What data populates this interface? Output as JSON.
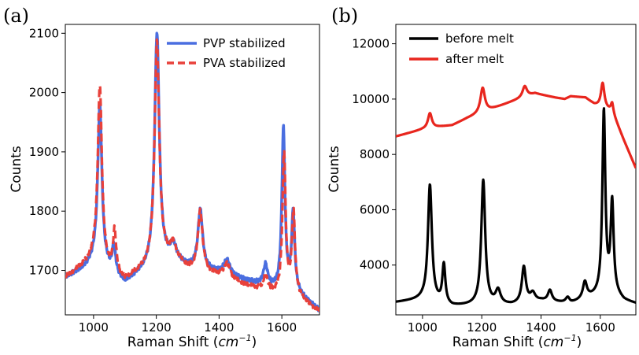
{
  "chart_data": [
    {
      "panel_label": "(a)",
      "type": "line",
      "xlabel": "Raman Shift (",
      "xlabel_unit": "cm",
      "xlabel_exp": "−1",
      "xlabel_close": ")",
      "ylabel": "Counts",
      "xlim": [
        910,
        1720
      ],
      "ylim": [
        1625,
        2115
      ],
      "xticks": [
        1000,
        1200,
        1400,
        1600
      ],
      "yticks": [
        1700,
        1800,
        1900,
        2000,
        2100
      ],
      "legend_position": "top-right",
      "series": [
        {
          "name": "PVP stabilized",
          "color": "#4a6ee0",
          "dash": "solid",
          "baseline": [
            [
              910,
              1688
            ],
            [
              960,
              1700
            ],
            [
              1000,
              1712
            ],
            [
              1060,
              1695
            ],
            [
              1100,
              1678
            ],
            [
              1150,
              1695
            ],
            [
              1250,
              1720
            ],
            [
              1300,
              1705
            ],
            [
              1400,
              1695
            ],
            [
              1500,
              1680
            ],
            [
              1580,
              1668
            ],
            [
              1650,
              1660
            ],
            [
              1720,
              1632
            ]
          ],
          "peaks": [
            [
              1020,
              272,
              8
            ],
            [
              1065,
              45,
              6
            ],
            [
              1202,
              392,
              9
            ],
            [
              1255,
              20,
              10
            ],
            [
              1340,
              100,
              9
            ],
            [
              1425,
              25,
              12
            ],
            [
              1548,
              35,
              8
            ],
            [
              1605,
              272,
              6
            ],
            [
              1636,
              132,
              6
            ]
          ]
        },
        {
          "name": "PVA stabilized",
          "color": "#e8413b",
          "dash": "dashed",
          "baseline": [
            [
              910,
              1688
            ],
            [
              960,
              1705
            ],
            [
              1000,
              1718
            ],
            [
              1060,
              1695
            ],
            [
              1100,
              1682
            ],
            [
              1150,
              1698
            ],
            [
              1250,
              1722
            ],
            [
              1300,
              1702
            ],
            [
              1400,
              1690
            ],
            [
              1500,
              1672
            ],
            [
              1580,
              1660
            ],
            [
              1650,
              1655
            ],
            [
              1720,
              1630
            ]
          ],
          "peaks": [
            [
              1020,
              302,
              8
            ],
            [
              1067,
              70,
              6
            ],
            [
              1202,
              375,
              9
            ],
            [
              1255,
              20,
              10
            ],
            [
              1340,
              102,
              9
            ],
            [
              1425,
              25,
              12
            ],
            [
              1548,
              25,
              8
            ],
            [
              1607,
              240,
              6
            ],
            [
              1637,
              140,
              6
            ]
          ]
        }
      ]
    },
    {
      "panel_label": "(b)",
      "type": "line",
      "xlabel": "Raman Shift (",
      "xlabel_unit": "cm",
      "xlabel_exp": "−1",
      "xlabel_close": ")",
      "ylabel": "Counts",
      "xlim": [
        910,
        1720
      ],
      "ylim": [
        2200,
        12700
      ],
      "xticks": [
        1000,
        1200,
        1400,
        1600
      ],
      "yticks": [
        4000,
        6000,
        8000,
        10000,
        12000
      ],
      "legend_position": "top-left",
      "series": [
        {
          "name": "before melt",
          "color": "#000000",
          "dash": "solid",
          "baseline": [
            [
              910,
              2650
            ],
            [
              1000,
              2750
            ],
            [
              1100,
              2500
            ],
            [
              1200,
              2550
            ],
            [
              1300,
              2550
            ],
            [
              1400,
              2700
            ],
            [
              1500,
              2600
            ],
            [
              1560,
              2800
            ],
            [
              1640,
              3000
            ],
            [
              1680,
              2700
            ],
            [
              1720,
              2600
            ]
          ],
          "peaks": [
            [
              1025,
              4200,
              8
            ],
            [
              1072,
              1400,
              6
            ],
            [
              1205,
              4500,
              8
            ],
            [
              1255,
              500,
              10
            ],
            [
              1342,
              1300,
              8
            ],
            [
              1372,
              300,
              10
            ],
            [
              1430,
              400,
              8
            ],
            [
              1490,
              200,
              8
            ],
            [
              1548,
              600,
              8
            ],
            [
              1612,
              6600,
              6
            ],
            [
              1640,
              3200,
              6
            ]
          ]
        },
        {
          "name": "after melt",
          "color": "#e8261e",
          "dash": "solid",
          "baseline": [
            [
              910,
              8650
            ],
            [
              1000,
              8900
            ],
            [
              1060,
              9000
            ],
            [
              1100,
              9050
            ],
            [
              1150,
              9300
            ],
            [
              1250,
              9700
            ],
            [
              1300,
              9900
            ],
            [
              1380,
              10200
            ],
            [
              1450,
              10050
            ],
            [
              1480,
              10000
            ],
            [
              1500,
              10100
            ],
            [
              1550,
              10050
            ],
            [
              1580,
              9800
            ],
            [
              1640,
              9550
            ],
            [
              1680,
              8500
            ],
            [
              1720,
              7500
            ]
          ],
          "peaks": [
            [
              1025,
              550,
              8
            ],
            [
              1203,
              900,
              9
            ],
            [
              1345,
              400,
              9
            ],
            [
              1608,
              900,
              7
            ],
            [
              1640,
              300,
              5
            ]
          ]
        }
      ]
    }
  ]
}
